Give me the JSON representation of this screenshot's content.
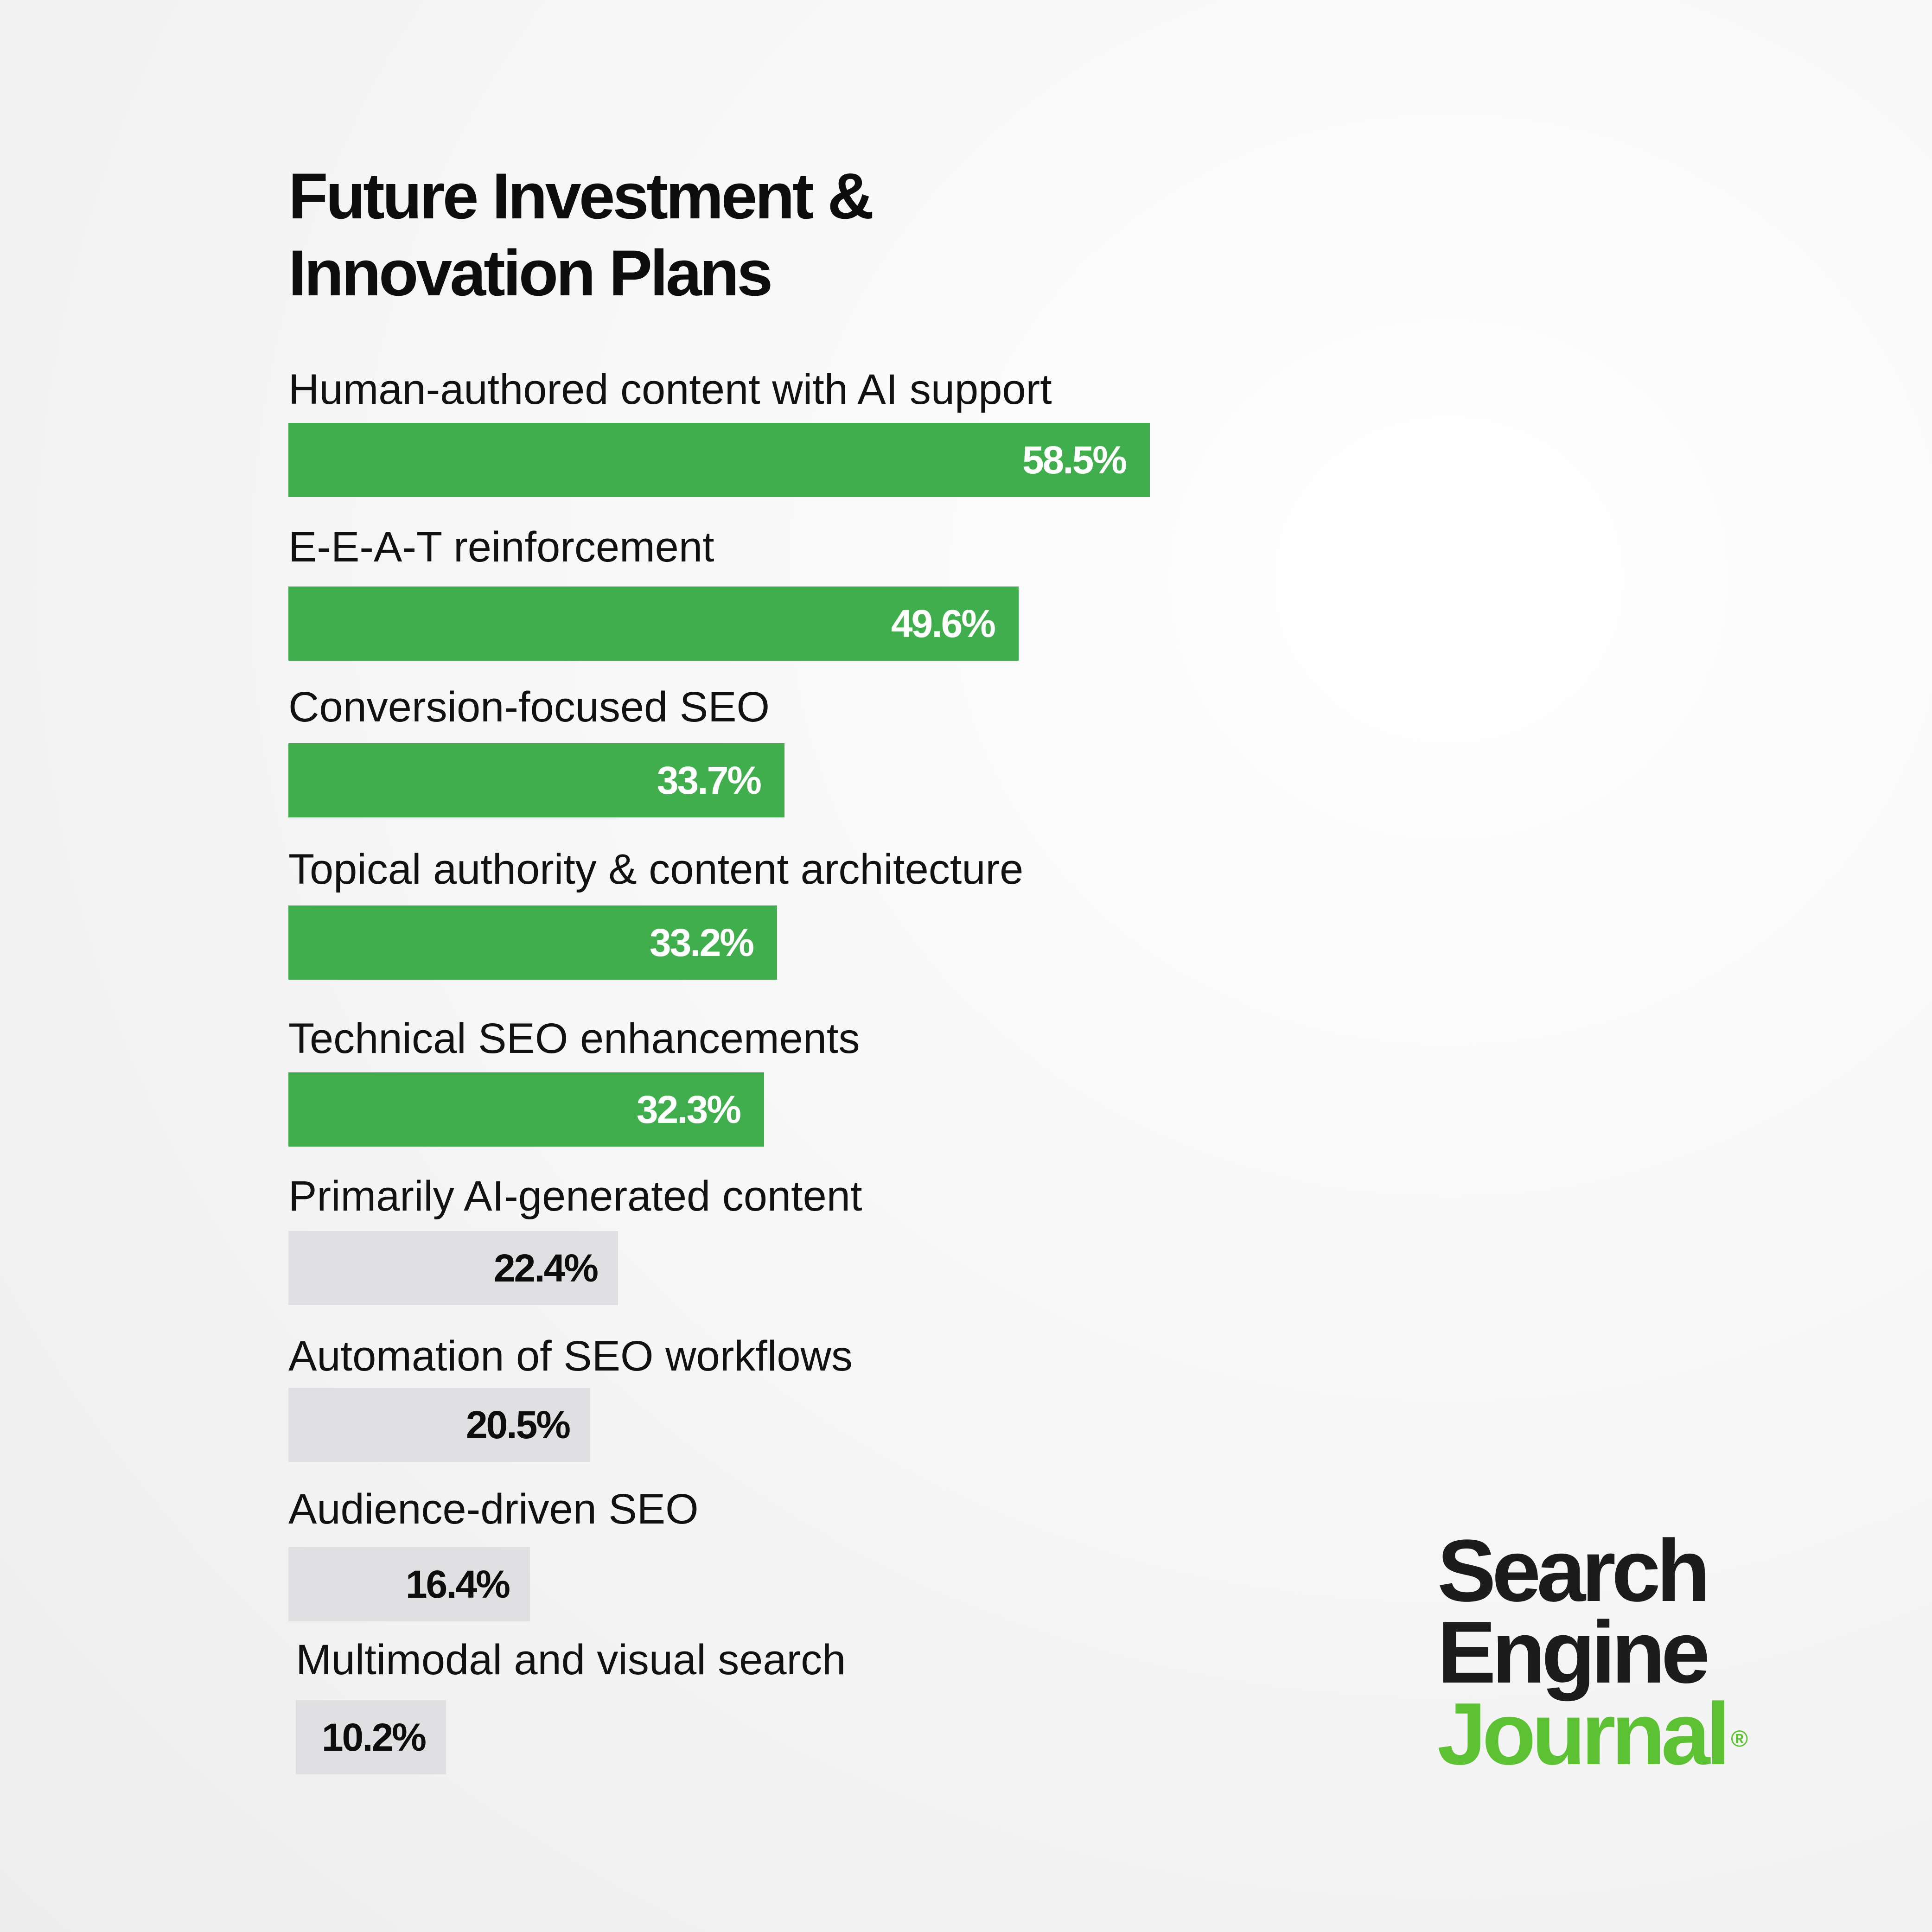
{
  "colors": {
    "highlight_bar": "#41ae4d",
    "muted_bar": "#e0e0e2",
    "highlight_text": "#ffffff",
    "muted_text": "#0d0d0d",
    "logo_accent": "#5cc233"
  },
  "chart_data": {
    "type": "bar",
    "orientation": "horizontal",
    "title": "Future Investment & Innovation Plans",
    "categories": [
      "Human-authored content with AI support",
      "E-E-A-T reinforcement",
      "Conversion-focused SEO",
      "Topical authority & content architecture",
      "Technical SEO enhancements",
      "Primarily AI-generated content",
      "Automation of SEO workflows",
      "Audience-driven SEO",
      "Multimodal and visual search"
    ],
    "values": [
      58.5,
      49.6,
      33.7,
      33.2,
      32.3,
      22.4,
      20.5,
      16.4,
      10.2
    ],
    "value_labels": [
      "58.5%",
      "49.6%",
      "33.7%",
      "33.2%",
      "32.3%",
      "22.4%",
      "20.5%",
      "16.4%",
      "10.2%"
    ],
    "highlighted": [
      true,
      true,
      true,
      true,
      true,
      false,
      false,
      false,
      false
    ],
    "unit": "%",
    "xlabel": "",
    "ylabel": "",
    "xlim": [
      0,
      58.5
    ],
    "grid": false,
    "legend": "none"
  },
  "logo": {
    "line1": "Search",
    "line2": "Engine",
    "line3": "Journal",
    "mark": "®"
  }
}
